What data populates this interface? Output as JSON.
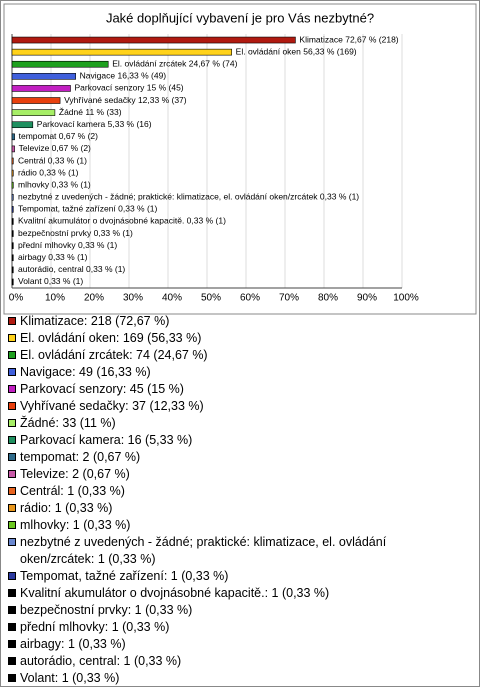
{
  "chart_data": {
    "type": "bar",
    "orientation": "horizontal",
    "title": "Jaké doplňující vybavení je pro Vás nezbytné?",
    "categories": [
      "Klimatizace",
      "El. ovládání oken",
      "El. ovládání zrcátek",
      "Navigace",
      "Parkovací senzory",
      "Vyhřívané sedačky",
      "Žádné",
      "Parkovací kamera",
      "tempomat",
      "Televize",
      "Centrál",
      "rádio",
      "mlhovky",
      "nezbytné z uvedených - žádné; praktické: klimatizace, el. ovládání oken/zrcátek",
      "Tempomat, tažné zařízení",
      "Kvalitní akumulátor o dvojnásobné kapacitě.",
      "bezpečnostní prvky",
      "přední mlhovky",
      "airbagy",
      "autorádio, central",
      "Volant"
    ],
    "values": [
      72.67,
      56.33,
      24.67,
      16.33,
      15,
      12.33,
      11,
      5.33,
      0.67,
      0.67,
      0.33,
      0.33,
      0.33,
      0.33,
      0.33,
      0.33,
      0.33,
      0.33,
      0.33,
      0.33,
      0.33
    ],
    "value_labels": [
      "Klimatizace 72,67 % (218)",
      "El. ovládání oken 56,33 % (169)",
      "El. ovládání zrcátek 24,67 % (74)",
      "Navigace 16,33 % (49)",
      "Parkovací senzory 15 % (45)",
      "Vyhřívané sedačky 12,33 % (37)",
      "Žádné 11 % (33)",
      "Parkovací kamera 5,33 % (16)",
      "tempomat 0,67 % (2)",
      "Televize 0,67 % (2)",
      "Centrál 0,33 % (1)",
      "rádio 0,33 % (1)",
      "mlhovky 0,33 % (1)",
      "nezbytné z uvedených - žádné; praktické: klimatizace, el. ovládání oken/zrcátek 0,33 % (1)",
      "Tempomat, tažné zařízení 0,33 % (1)",
      "Kvalitní akumulátor o dvojnásobné kapacitě. 0,33 % (1)",
      "bezpečnostní prvky 0,33 % (1)",
      "přední mlhovky 0,33 % (1)",
      "airbagy 0,33 % (1)",
      "autorádio, central 0,33 % (1)",
      "Volant 0,33 % (1)"
    ],
    "legend_labels": [
      "Klimatizace: 218 (72,67 %)",
      "El. ovládání oken: 169 (56,33 %)",
      "El. ovládání zrcátek: 74 (24,67 %)",
      "Navigace: 49 (16,33 %)",
      "Parkovací senzory: 45 (15 %)",
      "Vyhřívané sedačky: 37 (12,33 %)",
      "Žádné: 33 (11 %)",
      "Parkovací kamera: 16 (5,33 %)",
      "tempomat: 2 (0,67 %)",
      "Televize: 2 (0,67 %)",
      "Centrál: 1 (0,33 %)",
      "rádio: 1 (0,33 %)",
      "mlhovky: 1 (0,33 %)",
      "nezbytné z uvedených - žádné; praktické: klimatizace, el. ovládání oken/zrcátek: 1 (0,33 %)",
      "Tempomat, tažné zařízení: 1 (0,33 %)",
      "Kvalitní akumulátor o dvojnásobné kapacitě.: 1 (0,33 %)",
      "bezpečnostní prvky: 1 (0,33 %)",
      "přední mlhovky: 1 (0,33 %)",
      "airbagy: 1 (0,33 %)",
      "autorádio, central: 1 (0,33 %)",
      "Volant: 1 (0,33 %)"
    ],
    "colors": [
      "#b01a10",
      "#ffd21a",
      "#1fa01f",
      "#3f5fdc",
      "#c21fc2",
      "#e8400e",
      "#a6ee66",
      "#1f9060",
      "#2e6a8a",
      "#c85aa8",
      "#e86420",
      "#e8961c",
      "#6cc820",
      "#6a88d0",
      "#2c3aa0",
      "#000000",
      "#000000",
      "#000000",
      "#000000",
      "#000000",
      "#000000"
    ],
    "xlim": [
      0,
      100
    ],
    "xticks": [
      {
        "value": 0,
        "label": "0%"
      },
      {
        "value": 10,
        "label": "10%"
      },
      {
        "value": 20,
        "label": "20%"
      },
      {
        "value": 30,
        "label": "30%"
      },
      {
        "value": 40,
        "label": "40%"
      },
      {
        "value": 50,
        "label": "50%"
      },
      {
        "value": 60,
        "label": "60%"
      },
      {
        "value": 70,
        "label": "70%"
      },
      {
        "value": 80,
        "label": "80%"
      },
      {
        "value": 90,
        "label": "90%"
      },
      {
        "value": 100,
        "label": "100%"
      }
    ],
    "grid": true
  }
}
